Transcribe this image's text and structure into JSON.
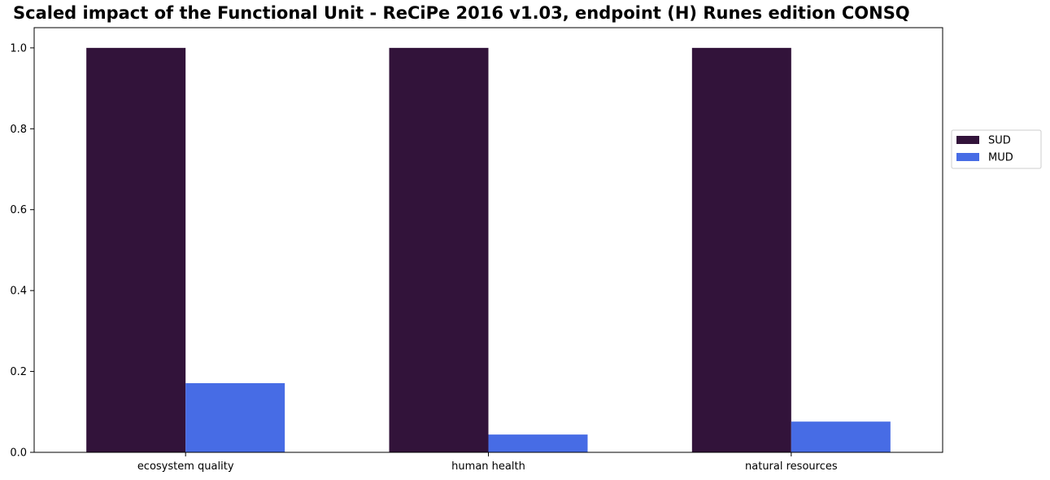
{
  "chart_data": {
    "type": "bar",
    "title": "Scaled impact of the Functional Unit - ReCiPe 2016 v1.03, endpoint (H) Runes edition CONSQ",
    "xlabel": "",
    "ylabel": "",
    "categories": [
      "ecosystem quality",
      "human health",
      "natural resources"
    ],
    "series": [
      {
        "name": "SUD",
        "color": "#32133a",
        "values": [
          1.0,
          1.0,
          1.0
        ]
      },
      {
        "name": "MUD",
        "color": "#476ce5",
        "values": [
          0.171,
          0.044,
          0.076
        ]
      }
    ],
    "ylim": [
      0,
      1.05
    ],
    "yticks": [
      "0.0",
      "0.2",
      "0.4",
      "0.6",
      "0.8",
      "1.0"
    ],
    "ytick_values": [
      0.0,
      0.2,
      0.4,
      0.6,
      0.8,
      1.0
    ],
    "grid": false,
    "legend_position": "right"
  }
}
